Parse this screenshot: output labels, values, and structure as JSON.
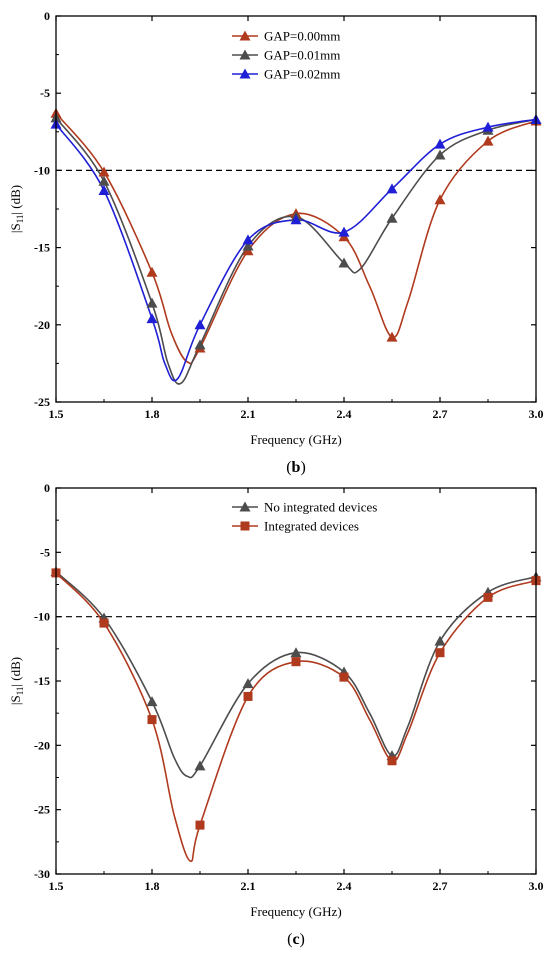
{
  "panel_labels": [
    "b",
    "c"
  ],
  "chart_data": [
    {
      "type": "line",
      "panel": "b",
      "xlabel": "Frequency (GHz)",
      "ylabel_main": "|S",
      "ylabel_sub": "11",
      "ylabel_end": "| (dB)",
      "xlim": [
        1.5,
        3.0
      ],
      "ylim": [
        -25,
        0
      ],
      "xticks": [
        1.5,
        1.8,
        2.1,
        2.4,
        2.7,
        3.0
      ],
      "xtick_labels": [
        "1.5",
        "1.8",
        "2.1",
        "2.4",
        "2.7",
        "3.0"
      ],
      "yticks": [
        0,
        -5,
        -10,
        -15,
        -20,
        -25
      ],
      "ytick_labels": [
        "0",
        "-5",
        "-10",
        "-15",
        "-20",
        "-25"
      ],
      "reference_line": -10,
      "legend_position": "top-center",
      "series": [
        {
          "name": "GAP=0.00mm",
          "color": "#b03a1e",
          "marker": "triangle",
          "markers_x": [
            1.5,
            1.65,
            1.8,
            1.95,
            2.1,
            2.25,
            2.4,
            2.55,
            2.7,
            2.85,
            3.0
          ],
          "markers_y": [
            -6.3,
            -10.1,
            -16.6,
            -21.5,
            -15.2,
            -12.8,
            -14.3,
            -20.8,
            -11.9,
            -8.1,
            -6.8
          ],
          "curve": [
            [
              1.5,
              -6.3
            ],
            [
              1.65,
              -10.1
            ],
            [
              1.8,
              -16.6
            ],
            [
              1.86,
              -20.5
            ],
            [
              1.91,
              -22.4
            ],
            [
              1.95,
              -21.5
            ],
            [
              2.1,
              -15.2
            ],
            [
              2.25,
              -12.8
            ],
            [
              2.4,
              -14.3
            ],
            [
              2.48,
              -17.5
            ],
            [
              2.55,
              -20.8
            ],
            [
              2.6,
              -18.5
            ],
            [
              2.7,
              -11.9
            ],
            [
              2.85,
              -8.1
            ],
            [
              3.0,
              -6.8
            ]
          ]
        },
        {
          "name": "GAP=0.01mm",
          "color": "#4d4d4d",
          "marker": "triangle",
          "markers_x": [
            1.5,
            1.65,
            1.8,
            1.95,
            2.1,
            2.25,
            2.4,
            2.55,
            2.7,
            2.85,
            3.0
          ],
          "markers_y": [
            -6.6,
            -10.7,
            -18.6,
            -21.3,
            -14.9,
            -13.0,
            -16.0,
            -13.1,
            -9.0,
            -7.4,
            -6.7
          ],
          "curve": [
            [
              1.5,
              -6.6
            ],
            [
              1.65,
              -10.7
            ],
            [
              1.8,
              -18.6
            ],
            [
              1.85,
              -22.5
            ],
            [
              1.89,
              -23.8
            ],
            [
              1.95,
              -21.3
            ],
            [
              2.1,
              -14.9
            ],
            [
              2.25,
              -13.0
            ],
            [
              2.4,
              -16.0
            ],
            [
              2.45,
              -16.4
            ],
            [
              2.55,
              -13.1
            ],
            [
              2.7,
              -9.0
            ],
            [
              2.85,
              -7.4
            ],
            [
              3.0,
              -6.7
            ]
          ]
        },
        {
          "name": "GAP=0.02mm",
          "color": "#1f1fd6",
          "marker": "triangle",
          "markers_x": [
            1.5,
            1.65,
            1.8,
            1.95,
            2.1,
            2.25,
            2.4,
            2.55,
            2.7,
            2.85,
            3.0
          ],
          "markers_y": [
            -7.0,
            -11.3,
            -19.6,
            -20.0,
            -14.5,
            -13.2,
            -14.0,
            -11.2,
            -8.3,
            -7.2,
            -6.7
          ],
          "curve": [
            [
              1.5,
              -7.0
            ],
            [
              1.65,
              -11.3
            ],
            [
              1.8,
              -19.6
            ],
            [
              1.84,
              -22.5
            ],
            [
              1.88,
              -23.5
            ],
            [
              1.95,
              -20.0
            ],
            [
              2.1,
              -14.5
            ],
            [
              2.25,
              -13.2
            ],
            [
              2.4,
              -14.0
            ],
            [
              2.55,
              -11.2
            ],
            [
              2.7,
              -8.3
            ],
            [
              2.85,
              -7.2
            ],
            [
              3.0,
              -6.7
            ]
          ]
        }
      ]
    },
    {
      "type": "line",
      "panel": "c",
      "xlabel": "Frequency (GHz)",
      "ylabel_main": "|S",
      "ylabel_sub": "11",
      "ylabel_end": "| (dB)",
      "xlim": [
        1.5,
        3.0
      ],
      "ylim": [
        -30,
        0
      ],
      "xticks": [
        1.5,
        1.8,
        2.1,
        2.4,
        2.7,
        3.0
      ],
      "xtick_labels": [
        "1.5",
        "1.8",
        "2.1",
        "2.4",
        "2.7",
        "3.0"
      ],
      "yticks": [
        0,
        -5,
        -10,
        -15,
        -20,
        -25,
        -30
      ],
      "ytick_labels": [
        "0",
        "-5",
        "-10",
        "-15",
        "-20",
        "-25",
        "-30"
      ],
      "reference_line": -10,
      "legend_position": "top-center",
      "series": [
        {
          "name": "No integrated devices",
          "color": "#4d4d4d",
          "marker": "triangle",
          "markers_x": [
            1.5,
            1.65,
            1.8,
            1.95,
            2.1,
            2.25,
            2.4,
            2.55,
            2.7,
            2.85,
            3.0
          ],
          "markers_y": [
            -6.5,
            -10.1,
            -16.6,
            -21.6,
            -15.2,
            -12.8,
            -14.3,
            -20.8,
            -11.9,
            -8.1,
            -6.9
          ],
          "curve": [
            [
              1.5,
              -6.5
            ],
            [
              1.65,
              -10.1
            ],
            [
              1.8,
              -16.6
            ],
            [
              1.87,
              -21.0
            ],
            [
              1.91,
              -22.4
            ],
            [
              1.95,
              -21.6
            ],
            [
              2.1,
              -15.2
            ],
            [
              2.25,
              -12.8
            ],
            [
              2.4,
              -14.3
            ],
            [
              2.48,
              -17.5
            ],
            [
              2.55,
              -20.8
            ],
            [
              2.6,
              -18.5
            ],
            [
              2.7,
              -11.9
            ],
            [
              2.85,
              -8.1
            ],
            [
              3.0,
              -6.9
            ]
          ]
        },
        {
          "name": "Integrated devices",
          "color": "#b03a1e",
          "marker": "square",
          "markers_x": [
            1.5,
            1.65,
            1.8,
            1.95,
            2.1,
            2.25,
            2.4,
            2.55,
            2.7,
            2.85,
            3.0
          ],
          "markers_y": [
            -6.6,
            -10.5,
            -18.0,
            -26.2,
            -16.2,
            -13.5,
            -14.7,
            -21.2,
            -12.8,
            -8.5,
            -7.2
          ],
          "curve": [
            [
              1.5,
              -6.6
            ],
            [
              1.65,
              -10.5
            ],
            [
              1.8,
              -18.0
            ],
            [
              1.87,
              -25.5
            ],
            [
              1.92,
              -29.0
            ],
            [
              1.95,
              -26.2
            ],
            [
              2.1,
              -16.2
            ],
            [
              2.25,
              -13.5
            ],
            [
              2.4,
              -14.7
            ],
            [
              2.48,
              -18.0
            ],
            [
              2.55,
              -21.2
            ],
            [
              2.6,
              -19.0
            ],
            [
              2.7,
              -12.8
            ],
            [
              2.85,
              -8.5
            ],
            [
              3.0,
              -7.2
            ]
          ]
        }
      ]
    }
  ]
}
